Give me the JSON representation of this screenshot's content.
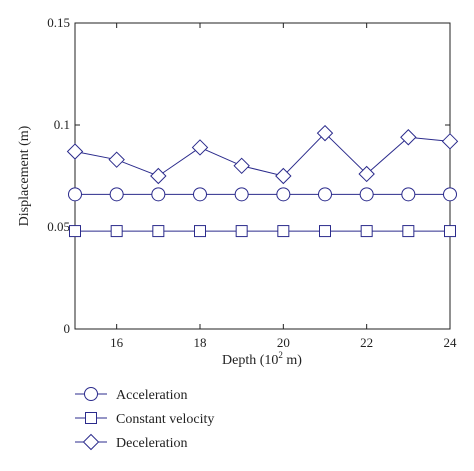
{
  "chart_data": {
    "type": "line",
    "xlabel": "Depth (10",
    "xlabel_sup": "2",
    "xlabel_tail": " m)",
    "ylabel": "Displacement (m)",
    "xlim": [
      15,
      24
    ],
    "ylim": [
      0,
      0.15
    ],
    "x_ticks": [
      "16",
      "18",
      "20",
      "22",
      "24"
    ],
    "y_ticks": [
      "0",
      "0.05",
      "0.1",
      "0.15"
    ],
    "x": [
      15,
      16,
      17,
      18,
      19,
      20,
      21,
      22,
      23,
      24
    ],
    "series": [
      {
        "name": "Acceleration",
        "marker": "circle",
        "values": [
          0.066,
          0.066,
          0.066,
          0.066,
          0.066,
          0.066,
          0.066,
          0.066,
          0.066,
          0.066
        ]
      },
      {
        "name": "Constant velocity",
        "marker": "square",
        "values": [
          0.048,
          0.048,
          0.048,
          0.048,
          0.048,
          0.048,
          0.048,
          0.048,
          0.048,
          0.048
        ]
      },
      {
        "name": "Deceleration",
        "marker": "diamond",
        "values": [
          0.087,
          0.083,
          0.075,
          0.089,
          0.08,
          0.075,
          0.096,
          0.076,
          0.094,
          0.092
        ]
      }
    ],
    "grid": false,
    "legend_position": "below",
    "color": "#2b2b8c"
  }
}
